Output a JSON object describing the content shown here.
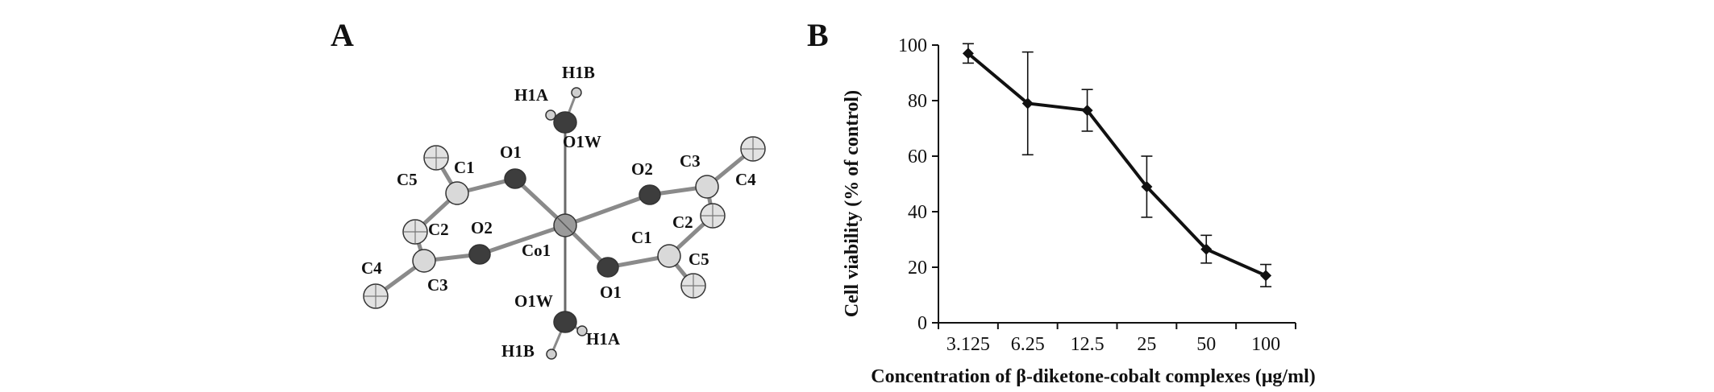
{
  "panel_a": {
    "letter": "A",
    "atoms": [
      {
        "id": "h1b_top",
        "label": "H1B"
      },
      {
        "id": "h1a_top",
        "label": "H1A"
      },
      {
        "id": "o1w_top",
        "label": "O1W"
      },
      {
        "id": "o1_left",
        "label": "O1"
      },
      {
        "id": "c1_left",
        "label": "C1"
      },
      {
        "id": "c5_left",
        "label": "C5"
      },
      {
        "id": "c2_left",
        "label": "C2"
      },
      {
        "id": "o2_left",
        "label": "O2"
      },
      {
        "id": "c4_left",
        "label": "C4"
      },
      {
        "id": "c3_left",
        "label": "C3"
      },
      {
        "id": "co1",
        "label": "Co1"
      },
      {
        "id": "o2_right",
        "label": "O2"
      },
      {
        "id": "c3_right",
        "label": "C3"
      },
      {
        "id": "c4_right",
        "label": "C4"
      },
      {
        "id": "c2_right",
        "label": "C2"
      },
      {
        "id": "c1_right",
        "label": "C1"
      },
      {
        "id": "c5_right",
        "label": "C5"
      },
      {
        "id": "o1_right",
        "label": "O1"
      },
      {
        "id": "o1w_bottom",
        "label": "O1W"
      },
      {
        "id": "h1a_bottom",
        "label": "H1A"
      },
      {
        "id": "h1b_bottom",
        "label": "H1B"
      }
    ]
  },
  "panel_b": {
    "letter": "B"
  },
  "chart_data": {
    "type": "line",
    "categories": [
      "3.125",
      "6.25",
      "12.5",
      "25",
      "50",
      "100"
    ],
    "values": [
      97,
      79,
      76.5,
      49,
      26.5,
      17
    ],
    "error": [
      3.5,
      18.5,
      7.5,
      11,
      5,
      4
    ],
    "ylabel": "Cell viability (% of control)",
    "xlabel": "Concentration of β-diketone-cobalt complexes (μg/ml)",
    "ylim": [
      0,
      100
    ],
    "yticks": [
      0,
      20,
      40,
      60,
      80,
      100
    ],
    "grid": false,
    "line_color": "#111111"
  }
}
